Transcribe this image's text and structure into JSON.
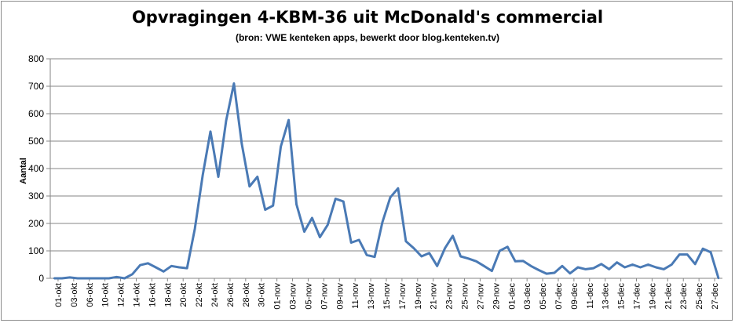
{
  "chart_data": {
    "type": "line",
    "title": "Opvragingen 4-KBM-36 uit McDonald's commercial",
    "subtitle": "(bron: VWE kenteken apps, bewerkt door blog.kenteken.tv)",
    "xlabel": "",
    "ylabel": "Aantal",
    "ylim": [
      0,
      800
    ],
    "yticks": [
      0,
      100,
      200,
      300,
      400,
      500,
      600,
      700,
      800
    ],
    "grid": true,
    "legend": "none",
    "line_color": "#4a7ab5",
    "x_tick_labels": [
      "01-okt",
      "03-okt",
      "06-okt",
      "10-okt",
      "12-okt",
      "14-okt",
      "16-okt",
      "18-okt",
      "20-okt",
      "22-okt",
      "24-okt",
      "26-okt",
      "28-okt",
      "30-okt",
      "01-nov",
      "03-nov",
      "05-nov",
      "07-nov",
      "09-nov",
      "11-nov",
      "13-nov",
      "15-nov",
      "17-nov",
      "19-nov",
      "21-nov",
      "23-nov",
      "25-nov",
      "27-nov",
      "29-nov",
      "01-dec",
      "03-dec",
      "05-dec",
      "07-dec",
      "09-dec",
      "11-dec",
      "13-dec",
      "15-dec",
      "17-dec",
      "19-dec",
      "21-dec",
      "23-dec",
      "25-dec",
      "27-dec"
    ],
    "values": [
      0,
      0,
      3,
      0,
      0,
      0,
      0,
      0,
      5,
      0,
      15,
      48,
      55,
      40,
      25,
      45,
      40,
      37,
      180,
      375,
      535,
      370,
      575,
      710,
      490,
      335,
      370,
      250,
      265,
      480,
      577,
      270,
      170,
      220,
      150,
      195,
      290,
      280,
      130,
      140,
      85,
      78,
      205,
      295,
      328,
      135,
      110,
      80,
      92,
      45,
      110,
      155,
      80,
      72,
      62,
      45,
      27,
      100,
      115,
      62,
      63,
      45,
      30,
      17,
      20,
      45,
      18,
      40,
      33,
      37,
      52,
      33,
      58,
      40,
      50,
      40,
      50,
      40,
      33,
      50,
      87,
      87,
      52,
      108,
      95,
      0
    ]
  }
}
